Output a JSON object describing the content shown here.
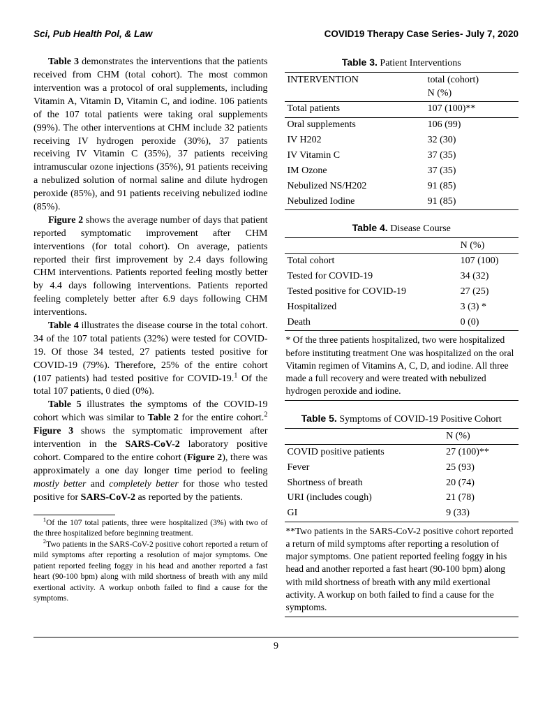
{
  "header": {
    "left": "Sci, Pub Health Pol, & Law",
    "right": "COVID19 Therapy Case Series- July 7, 2020"
  },
  "body": {
    "p1a": "Table 3",
    "p1b": " demonstrates the interventions that the patients received from CHM (total cohort). The most common intervention was a protocol of oral supplements, including Vitamin A, Vitamin D, Vitamin C, and iodine. 106 patients of the 107 total patients were taking oral supplements (99%). The other interventions at CHM include 32 patients receiving IV hydrogen peroxide (30%), 37 patients receiving IV Vitamin C (35%), 37 patients receiving intramuscular ozone injections (35%), 91 patients receiving a nebulized solution of normal saline and dilute hydrogen peroxide (85%), and 91 patients receiving nebulized iodine (85%).",
    "p2a": "Figure 2",
    "p2b": " shows the average number of days that patient reported symptomatic improvement after CHM interventions (for total cohort). On average, patients reported their first improvement by 2.4 days following CHM interventions. Patients reported feeling mostly better by 4.4 days following interventions. Patients reported feeling completely better after 6.9 days following CHM interventions.",
    "p3a": "Table 4",
    "p3b": " illustrates the disease course in the total cohort. 34 of the 107 total patients (32%) were tested for COVID-19. Of those 34 tested, 27 patients tested positive for COVID-19 (79%). Therefore, 25% of the entire cohort (107 patients) had tested positive for COVID-19.",
    "p3sup1": "1",
    "p3c": " Of the total 107 patients, 0 died (0%).",
    "p4a": "Table 5",
    "p4b": " illustrates the symptoms of the COVID-19 cohort which was similar to ",
    "p4c": "Table 2",
    "p4d": " for the entire cohort.",
    "p4sup2": "2",
    "p4e": " ",
    "p4f": "Figure 3",
    "p4g": " shows the symptomatic improvement after intervention in the ",
    "p4h": "SARS-CoV-2",
    "p4i": " laboratory positive cohort. Compared to the entire cohort (",
    "p4j": "Figure 2",
    "p4k": "), there was approximately a one day longer time period to feeling ",
    "p4l": "mostly better",
    "p4m": " and ",
    "p4n": "completely better",
    "p4o": " for those who tested positive for ",
    "p4p": "SARS-CoV-2",
    "p4q": " as reported by the patients."
  },
  "footnotes": {
    "f1sup": "1",
    "f1": "Of the 107 total patients, three were hospitalized (3%) with two of the three hospitalized before beginning treatment.",
    "f2sup": "2",
    "f2": "Two patients in the SARS-CoV-2 positive cohort reported a return of mild symptoms after reporting a resolution of major symptoms. One patient reported feeling foggy in his head and another reported a fast heart (90-100 bpm) along with mild shortness of breath with any mild exertional activity. A workup onboth failed to find a cause for the symptoms."
  },
  "table3": {
    "label": "Table 3.",
    "title": " Patient Interventions",
    "head1": "INTERVENTION",
    "head2a": "total (cohort)",
    "head2b": "N (%)",
    "rows": [
      [
        "Total patients",
        "107 (100)**"
      ],
      [
        "Oral supplements",
        "106 (99)"
      ],
      [
        "IV H202",
        "32 (30)"
      ],
      [
        "IV Vitamin C",
        "37 (35)"
      ],
      [
        "IM Ozone",
        "37 (35)"
      ],
      [
        "Nebulized NS/H202",
        "91 (85)"
      ],
      [
        "Nebulized Iodine",
        "91 (85)"
      ]
    ]
  },
  "table4": {
    "label": "Table 4.",
    "title": " Disease Course",
    "head2": "N (%)",
    "rows": [
      [
        "Total cohort",
        "107 (100)"
      ],
      [
        "Tested for COVID-19",
        "34 (32)"
      ],
      [
        "Tested positive for COVID-19",
        "27 (25)"
      ],
      [
        "Hospitalized",
        "3 (3) *"
      ],
      [
        "Death",
        "0 (0)"
      ]
    ],
    "note": "* Of the three patients hospitalized, two were hospitalized before instituting treatment One was hospitalized on the oral Vitamin regimen of Vitamins A, C, D, and iodine. All three made a full recovery and were treated with nebulized hydrogen peroxide and iodine."
  },
  "table5": {
    "label": "Table 5.",
    "title": " Symptoms of COVID-19 Positive Cohort",
    "head2": "N (%)",
    "rows": [
      [
        "COVID positive patients",
        "27 (100)**"
      ],
      [
        "Fever",
        "25 (93)"
      ],
      [
        "Shortness of breath",
        "20 (74)"
      ],
      [
        "URI (includes cough)",
        "21 (78)"
      ],
      [
        "GI",
        "9 (33)"
      ]
    ],
    "note": "**Two patients in the SARS-CoV-2 positive cohort reported a return of mild symptoms after reporting a resolution of major symptoms. One patient reported feeling foggy in his head and another reported a fast heart (90-100 bpm) along with mild shortness of breath with any mild exertional activity. A workup on both failed to find a cause for the symptoms."
  },
  "pageNumber": "9"
}
